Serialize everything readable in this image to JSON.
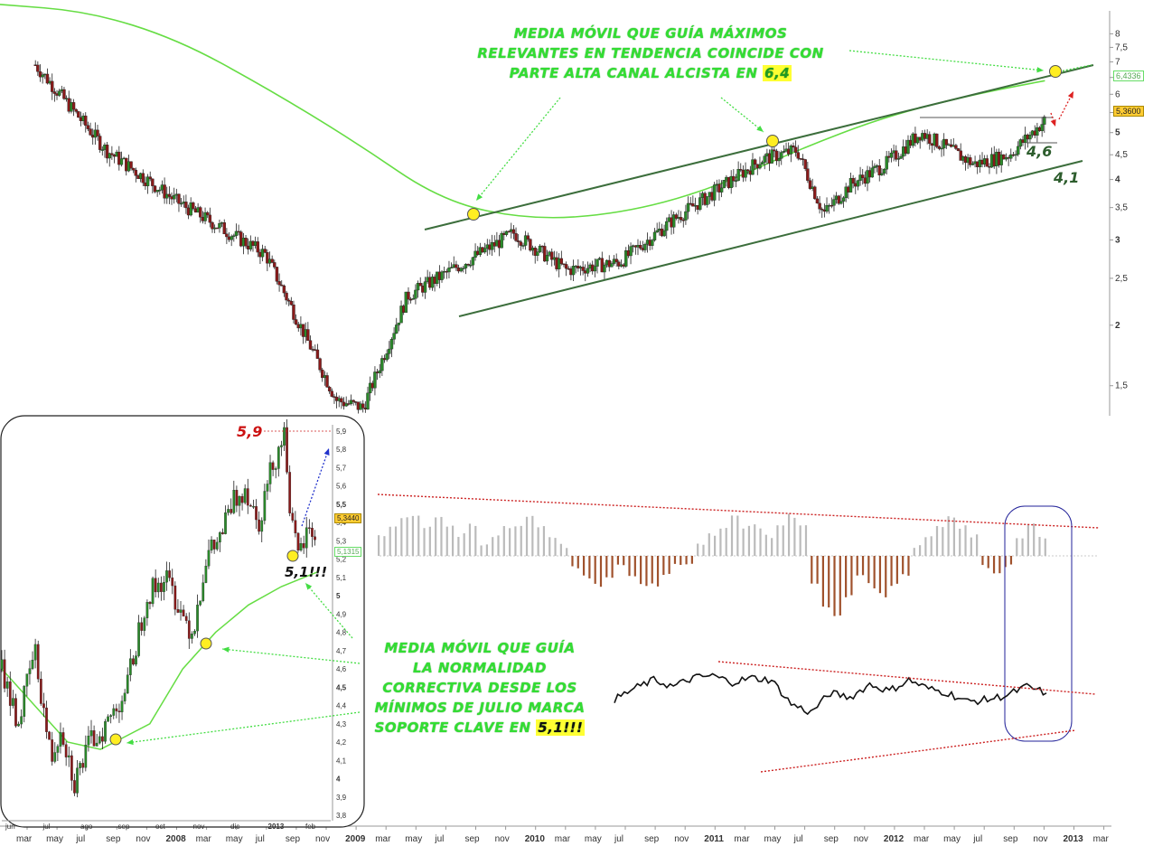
{
  "chart_data": [
    {
      "type": "line",
      "scale": "log",
      "y_ticks": [
        "8",
        "7,5",
        "7",
        "6,5",
        "6",
        "5,5",
        "5",
        "4,5",
        "4",
        "3,5",
        "3",
        "2,5",
        "2",
        "1,5"
      ],
      "y_tick_values": [
        8,
        7.5,
        7,
        6.5,
        6,
        5.5,
        5,
        4.5,
        4,
        3.5,
        3,
        2.5,
        2,
        1.5
      ],
      "last_price_label": "5,3600",
      "moving_average_label": "6,4336",
      "levels": [
        "4,6",
        "4,1"
      ],
      "annotation": [
        "MEDIA MÓVIL QUE GUÍA MÁXIMOS",
        "RELEVANTES EN TENDENCIA COINCIDE CON",
        "PARTE ALTA CANAL ALCISTA EN "
      ],
      "annotation_highlight": "6,4",
      "series": [
        {
          "x": [
            2007.2,
            2007.6,
            2008.0,
            2008.5,
            2008.9,
            2009.05,
            2009.3,
            2009.7,
            2009.9,
            2010.2,
            2010.5,
            2010.8,
            2011.0,
            2011.3,
            2011.5,
            2011.65,
            2011.8,
            2012.0,
            2012.2,
            2012.5,
            2012.7,
            2012.9
          ],
          "values": [
            6.9,
            4.6,
            3.6,
            2.8,
            1.4,
            1.35,
            2.3,
            2.8,
            3.1,
            2.6,
            2.7,
            3.3,
            3.7,
            4.4,
            4.6,
            3.4,
            3.9,
            4.3,
            5.0,
            4.3,
            4.5,
            5.3
          ]
        },
        {
          "x": [
            2007.0,
            2007.5,
            2008.0,
            2008.5,
            2009.0,
            2009.5,
            2010.0,
            2010.5,
            2011.0,
            2011.5,
            2012.0,
            2012.5,
            2012.9
          ],
          "values": [
            9.2,
            8.9,
            7.8,
            6.2,
            4.8,
            3.6,
            3.3,
            3.4,
            3.8,
            4.6,
            5.4,
            6.0,
            6.4
          ]
        }
      ],
      "x_ticks": [
        "mar",
        "may",
        "jul",
        "sep",
        "nov",
        "2008",
        "mar",
        "may",
        "jul",
        "sep",
        "nov",
        "2009",
        "mar",
        "may",
        "jul",
        "sep",
        "nov",
        "2010",
        "mar",
        "may",
        "jul",
        "sep",
        "nov",
        "2011",
        "mar",
        "may",
        "jul",
        "sep",
        "nov",
        "2012",
        "mar",
        "may",
        "jul",
        "sep",
        "nov",
        "2013",
        "mar"
      ]
    },
    {
      "type": "bar",
      "series": [
        {
          "values": [
            2,
            3,
            4,
            4,
            3,
            4,
            3,
            2,
            3,
            1,
            2,
            3,
            3,
            4,
            3,
            2,
            1,
            -1,
            -2,
            -3,
            -2,
            -1,
            -2,
            -3,
            -3,
            -2,
            -1,
            -1,
            1,
            2,
            3,
            4,
            3,
            3,
            2,
            3,
            4,
            3,
            -3,
            -5,
            -6,
            -4,
            -2,
            -3,
            -4,
            -3,
            -2,
            1,
            2,
            3,
            4,
            3,
            2,
            -1,
            -2,
            -1,
            2,
            3,
            2
          ]
        }
      ]
    },
    {
      "type": "line",
      "series": [
        {
          "values": [
            4.0,
            4.5,
            4.9,
            4.6,
            5.0,
            5.1,
            4.8,
            5.0,
            4.9,
            3.8,
            3.4,
            4.3,
            4.1,
            4.7,
            4.4,
            4.9,
            4.5,
            4.3,
            3.9,
            4.0,
            4.2,
            4.6,
            4.3
          ]
        }
      ]
    },
    {
      "type": "bar",
      "y_ticks": [
        "5,9",
        "5,8",
        "5,7",
        "5,6",
        "5,5",
        "5,4",
        "5,3",
        "5,2",
        "5,1",
        "5",
        "4,9",
        "4,8",
        "4,7",
        "4,6",
        "4,5",
        "4,4",
        "4,3",
        "4,2",
        "4,1",
        "4",
        "3,9",
        "3,8"
      ],
      "y_tick_values": [
        5.9,
        5.8,
        5.7,
        5.6,
        5.5,
        5.4,
        5.3,
        5.2,
        5.1,
        5.0,
        4.9,
        4.8,
        4.7,
        4.6,
        4.5,
        4.4,
        4.3,
        4.2,
        4.1,
        4.0,
        3.9,
        3.8
      ],
      "x_ticks": [
        "jun",
        "jul",
        "ago",
        "sep",
        "oct",
        "nov",
        "dic",
        "2013",
        "feb"
      ],
      "last_price_label": "5,3440",
      "moving_average_label": "5,1315",
      "high_label": "5,9",
      "support_label": "5,1!!!",
      "annotation": [
        "MEDIA MÓVIL QUE GUÍA",
        "LA NORMALIDAD",
        "CORRECTIVA DESDE LOS",
        "MÍNIMOS DE JULIO MARCA",
        "SOPORTE CLAVE EN "
      ],
      "annotation_highlight": "5,1!!!",
      "series": [
        {
          "x": [
            0,
            0.05,
            0.1,
            0.15,
            0.18,
            0.22,
            0.27,
            0.32,
            0.38,
            0.44,
            0.5,
            0.55,
            0.58,
            0.62,
            0.66,
            0.7,
            0.74,
            0.78,
            0.82,
            0.86,
            0.88,
            0.9,
            0.93,
            0.96
          ],
          "values": [
            4.6,
            4.3,
            4.7,
            4.1,
            4.3,
            3.98,
            4.2,
            4.3,
            4.5,
            5.0,
            5.1,
            4.9,
            4.8,
            5.2,
            5.3,
            5.5,
            5.6,
            5.4,
            5.7,
            5.9,
            5.4,
            5.2,
            5.35,
            5.34
          ]
        },
        {
          "x": [
            0,
            0.1,
            0.2,
            0.3,
            0.45,
            0.55,
            0.65,
            0.75,
            0.85,
            0.96
          ],
          "values": [
            4.6,
            4.4,
            4.2,
            4.16,
            4.3,
            4.6,
            4.8,
            4.95,
            5.05,
            5.13
          ]
        }
      ]
    }
  ]
}
